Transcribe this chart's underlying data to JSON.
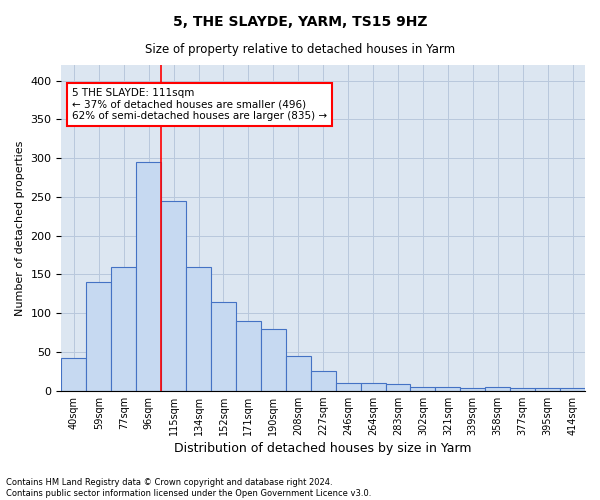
{
  "title": "5, THE SLAYDE, YARM, TS15 9HZ",
  "subtitle": "Size of property relative to detached houses in Yarm",
  "xlabel": "Distribution of detached houses by size in Yarm",
  "ylabel": "Number of detached properties",
  "footer": "Contains HM Land Registry data © Crown copyright and database right 2024.\nContains public sector information licensed under the Open Government Licence v3.0.",
  "bar_labels": [
    "40sqm",
    "59sqm",
    "77sqm",
    "96sqm",
    "115sqm",
    "134sqm",
    "152sqm",
    "171sqm",
    "190sqm",
    "208sqm",
    "227sqm",
    "246sqm",
    "264sqm",
    "283sqm",
    "302sqm",
    "321sqm",
    "339sqm",
    "358sqm",
    "377sqm",
    "395sqm",
    "414sqm"
  ],
  "bar_values": [
    42,
    140,
    160,
    295,
    245,
    160,
    115,
    90,
    80,
    45,
    25,
    10,
    10,
    8,
    5,
    5,
    3,
    5,
    3,
    3,
    3
  ],
  "bar_color": "#c6d9f1",
  "bar_edge_color": "#4472c4",
  "grid_color": "#b8c8dc",
  "background_color": "#dce6f1",
  "annotation_text": "5 THE SLAYDE: 111sqm\n← 37% of detached houses are smaller (496)\n62% of semi-detached houses are larger (835) →",
  "vline_index": 3.5,
  "ylim": [
    0,
    420
  ],
  "yticks": [
    0,
    50,
    100,
    150,
    200,
    250,
    300,
    350,
    400
  ]
}
